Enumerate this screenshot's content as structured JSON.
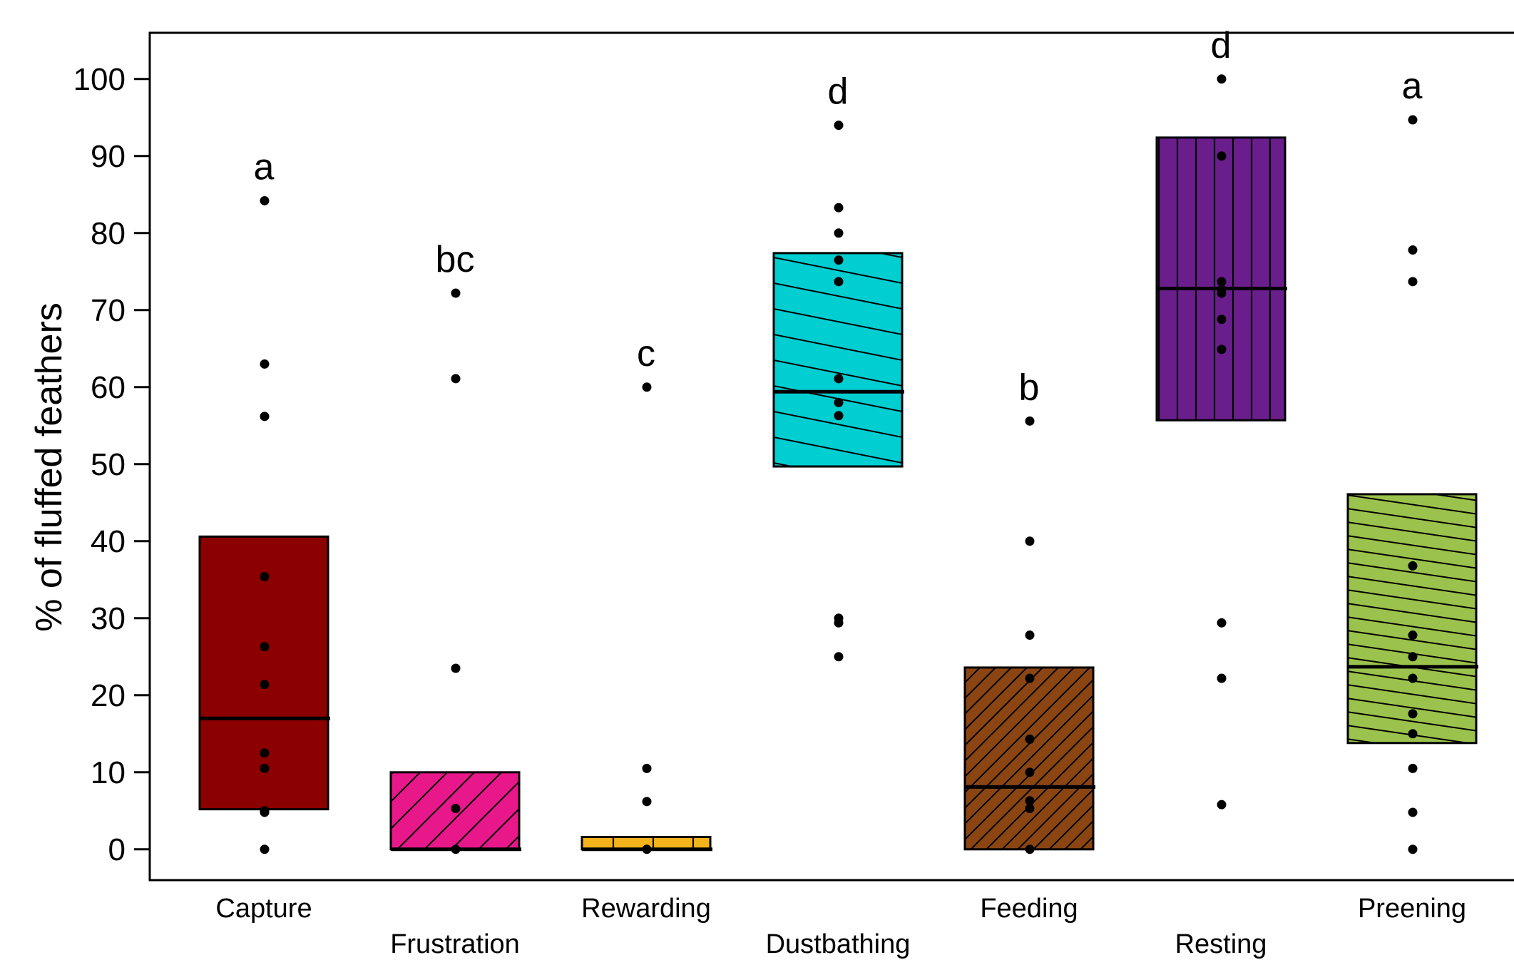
{
  "chart_data": {
    "type": "box",
    "ylabel": "% of fluffed feathers",
    "xlabel": "",
    "ylim": [
      -4,
      106
    ],
    "yticks": [
      0,
      10,
      20,
      30,
      40,
      50,
      60,
      70,
      80,
      90,
      100
    ],
    "legend": "none",
    "grid": false,
    "categories": [
      "Capture",
      "Frustration",
      "Rewarding",
      "Dustbathing",
      "Feeding",
      "Resting",
      "Preening"
    ],
    "groups": [
      {
        "name": "Capture",
        "color": "#8B0000",
        "pattern": "none",
        "q1": 5.2,
        "median": 17,
        "q3": 40.6,
        "points": [
          84.2,
          63,
          56.2,
          35.4,
          26.3,
          21.4,
          12.5,
          10.5,
          5,
          4.8,
          0
        ],
        "letter": "a"
      },
      {
        "name": "Frustration",
        "color": "#E8178A",
        "pattern": "diagonal-up",
        "q1": 0,
        "median": 0,
        "q3": 10,
        "points": [
          72.2,
          61.1,
          23.5,
          5.3,
          0
        ],
        "letter": "bc"
      },
      {
        "name": "Rewarding",
        "color": "#F5B31B",
        "pattern": "dashed",
        "q1": 0,
        "median": 0,
        "q3": 1.6,
        "points": [
          60,
          10.5,
          6.2,
          0
        ],
        "letter": "c"
      },
      {
        "name": "Dustbathing",
        "color": "#00CED1",
        "pattern": "diagonal-down",
        "q1": 49.7,
        "median": 59.4,
        "q3": 77.4,
        "points": [
          94,
          83.3,
          80,
          76.5,
          73.7,
          61.1,
          58,
          56.3,
          30,
          29.4,
          25
        ],
        "letter": "d"
      },
      {
        "name": "Feeding",
        "color": "#8B4513",
        "pattern": "diagonal-up-dense",
        "q1": 0,
        "median": 8.1,
        "q3": 23.6,
        "points": [
          55.6,
          40,
          27.8,
          22.2,
          14.3,
          10,
          6.3,
          5.3,
          0
        ],
        "letter": "b"
      },
      {
        "name": "Resting",
        "color": "#6A1E8C",
        "pattern": "vertical",
        "q1": 55.7,
        "median": 72.8,
        "q3": 92.4,
        "points": [
          100,
          90,
          73.7,
          72.7,
          72.2,
          68.8,
          64.9,
          29.4,
          22.2,
          5.8
        ],
        "letter": "d"
      },
      {
        "name": "Preening",
        "color": "#9BC24C",
        "pattern": "diagonal-down-dense",
        "q1": 13.8,
        "median": 23.7,
        "q3": 46.1,
        "points": [
          94.7,
          77.8,
          73.7,
          36.8,
          27.8,
          25,
          22.2,
          17.6,
          15,
          10.5,
          4.8,
          0
        ],
        "letter": "a"
      }
    ]
  }
}
